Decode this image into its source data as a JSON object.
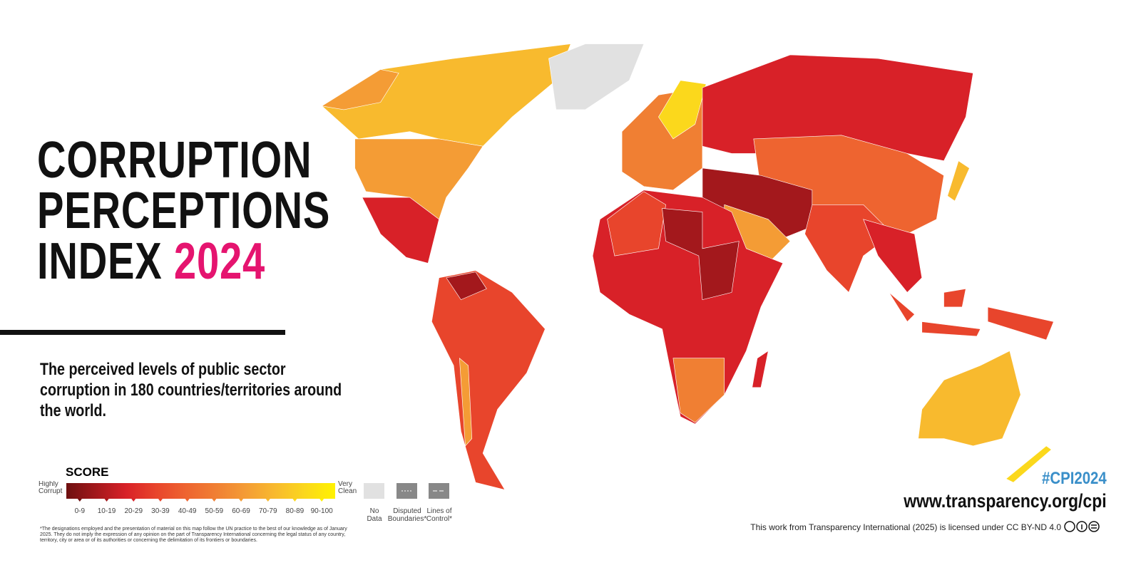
{
  "title": {
    "line1": "CORRUPTION",
    "line2": "PERCEPTIONS",
    "line3": "INDEX",
    "year": "2024"
  },
  "subtitle": "The perceived levels of public sector corruption in 180 countries/territories around the world.",
  "legend": {
    "title": "SCORE",
    "low_label": "Highly Corrupt",
    "high_label": "Very Clean",
    "bins": [
      {
        "label": "0-9",
        "color": "#6e1010"
      },
      {
        "label": "10-19",
        "color": "#a3181c"
      },
      {
        "label": "20-29",
        "color": "#d82128"
      },
      {
        "label": "30-39",
        "color": "#e8452c"
      },
      {
        "label": "40-49",
        "color": "#ee6430"
      },
      {
        "label": "50-59",
        "color": "#f07f33"
      },
      {
        "label": "60-69",
        "color": "#f49c35"
      },
      {
        "label": "70-79",
        "color": "#f8ba2e"
      },
      {
        "label": "80-89",
        "color": "#fbd81c"
      },
      {
        "label": "90-100",
        "color": "#fff200"
      }
    ],
    "extras": [
      {
        "label": "No Data"
      },
      {
        "label": "Disputed Boundaries*"
      },
      {
        "label": "Lines of Control*"
      }
    ]
  },
  "footnote": "*The designations employed and the presentation of material on this map follow the UN practice to the best of our knowledge as of January 2025. They do not imply the expression of any opinion on the part of Transparency International concerning the legal status of any country, territory, city or area or of its authorities or concerning the delimitation of its frontiers or boundaries.",
  "hashtag": "#CPI2024",
  "url": "www.transparency.org/cpi",
  "license": "This work from Transparency International (2025) is licensed under CC BY-ND 4.0"
}
